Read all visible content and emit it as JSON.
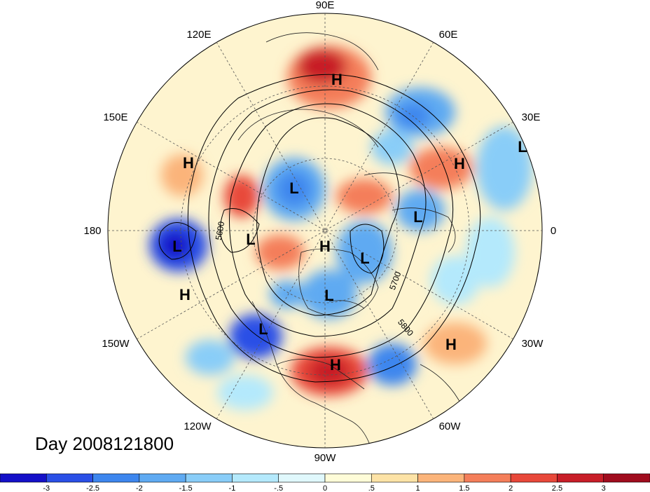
{
  "date_label": "Day 2008121800",
  "longitude_labels": [
    "90E",
    "60E",
    "30E",
    "0",
    "30W",
    "60W",
    "90W",
    "120W",
    "150W",
    "180",
    "150E",
    "120E"
  ],
  "centers": [
    {
      "type": "H",
      "name": "h-siberia"
    },
    {
      "type": "L",
      "name": "l-kamchatka-north"
    },
    {
      "type": "L",
      "name": "l-scandinavia"
    },
    {
      "type": "H",
      "name": "h-europe"
    },
    {
      "type": "L",
      "name": "l-east-atlantic"
    },
    {
      "type": "L",
      "name": "l-north-pacific"
    },
    {
      "type": "H",
      "name": "h-pacific-east"
    },
    {
      "type": "H",
      "name": "h-pacific-south"
    },
    {
      "type": "L",
      "name": "l-bering"
    },
    {
      "type": "H",
      "name": "h-pole"
    },
    {
      "type": "L",
      "name": "l-greenland"
    },
    {
      "type": "L",
      "name": "l-hudson"
    },
    {
      "type": "L",
      "name": "l-gulf-of-alaska"
    },
    {
      "type": "H",
      "name": "h-gulf-mexico"
    },
    {
      "type": "H",
      "name": "h-atlantic"
    },
    {
      "type": "L",
      "name": "l-arabian"
    }
  ],
  "contour_labels": [
    "5600",
    "5700",
    "5800"
  ],
  "colorbar": {
    "ticks": [
      "-3",
      "-2.5",
      "-2",
      "-1.5",
      "-1",
      "-.5",
      "0",
      ".5",
      "1",
      "1.5",
      "2",
      "2.5",
      "3"
    ],
    "colors": [
      "#1410c8",
      "#2a4fe6",
      "#3d86ee",
      "#5faaf2",
      "#89cdf8",
      "#b4e9fc",
      "#e0f8fc",
      "#fefcd8",
      "#fde3a6",
      "#fbb47a",
      "#f47e5a",
      "#e8483a",
      "#c81e28",
      "#a00c1e"
    ]
  }
}
